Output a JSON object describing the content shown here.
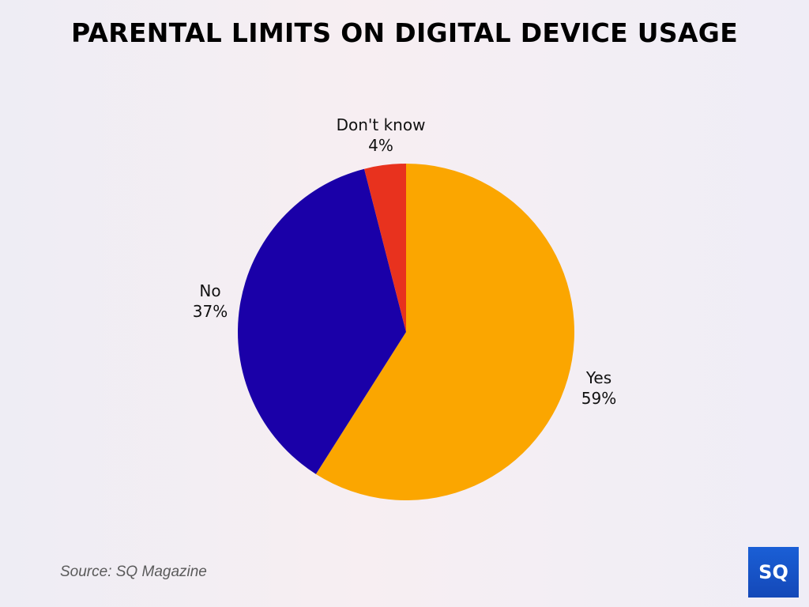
{
  "title": "PARENTAL LIMITS ON DIGITAL DEVICE USAGE",
  "source": "Source: SQ Magazine",
  "logo": {
    "text": "SQ",
    "color": "#1a56cc"
  },
  "labels": {
    "dont_know": {
      "name": "Don't know",
      "value": "4%"
    },
    "no": {
      "name": "No",
      "value": "37%"
    },
    "yes": {
      "name": "Yes",
      "value": "59%"
    }
  },
  "chart_data": {
    "type": "pie",
    "title": "PARENTAL LIMITS ON DIGITAL DEVICE USAGE",
    "categories": [
      "Yes",
      "No",
      "Don't know"
    ],
    "values": [
      59,
      37,
      4
    ],
    "unit": "%",
    "colors": [
      "#FBA600",
      "#1A00A8",
      "#E8321E"
    ],
    "start_angle": "12 o'clock, clockwise",
    "legend": "none (direct labels)",
    "source": "Source: SQ Magazine"
  }
}
